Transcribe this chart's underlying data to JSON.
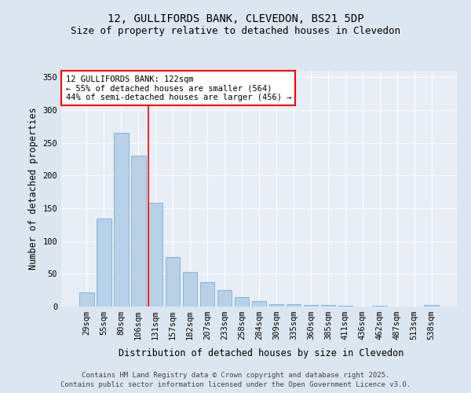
{
  "title_line1": "12, GULLIFORDS BANK, CLEVEDON, BS21 5DP",
  "title_line2": "Size of property relative to detached houses in Clevedon",
  "xlabel": "Distribution of detached houses by size in Clevedon",
  "ylabel": "Number of detached properties",
  "categories": [
    "29sqm",
    "55sqm",
    "80sqm",
    "106sqm",
    "131sqm",
    "157sqm",
    "182sqm",
    "207sqm",
    "233sqm",
    "258sqm",
    "284sqm",
    "309sqm",
    "335sqm",
    "360sqm",
    "385sqm",
    "411sqm",
    "436sqm",
    "462sqm",
    "487sqm",
    "513sqm",
    "538sqm"
  ],
  "values": [
    22,
    135,
    265,
    230,
    158,
    76,
    53,
    37,
    25,
    14,
    9,
    4,
    4,
    3,
    3,
    1,
    0,
    1,
    0,
    0,
    2
  ],
  "bar_color": "#b8d0e8",
  "bar_edge_color": "#7aafd4",
  "annotation_box_text": "12 GULLIFORDS BANK: 122sqm\n← 55% of detached houses are smaller (564)\n44% of semi-detached houses are larger (456) →",
  "vline_color": "red",
  "vline_x": 3.6,
  "ylim": [
    0,
    360
  ],
  "yticks": [
    0,
    50,
    100,
    150,
    200,
    250,
    300,
    350
  ],
  "annotation_box_color": "red",
  "background_color": "#dce6f0",
  "plot_bg_color": "#e8eef6",
  "footer_line1": "Contains HM Land Registry data © Crown copyright and database right 2025.",
  "footer_line2": "Contains public sector information licensed under the Open Government Licence v3.0.",
  "grid_color": "#ffffff",
  "title_fontsize": 10,
  "subtitle_fontsize": 9,
  "axis_label_fontsize": 8.5,
  "tick_fontsize": 7.5,
  "annotation_fontsize": 7.5,
  "footer_fontsize": 6.5
}
